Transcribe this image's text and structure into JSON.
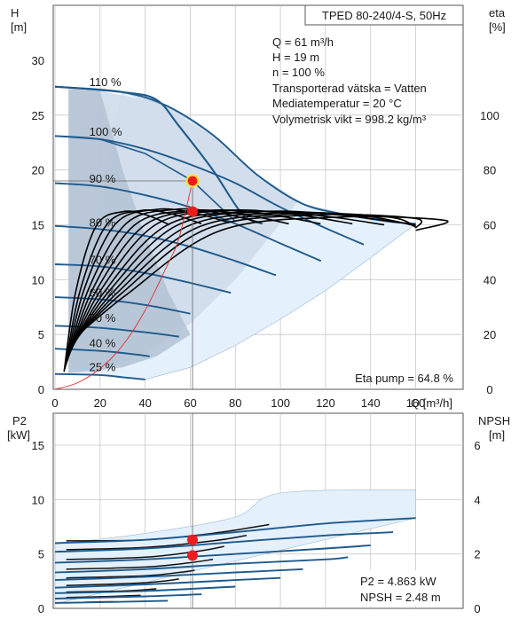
{
  "chart_data": [
    {
      "type": "line",
      "title": "TPED 80-240/4-S, 50Hz",
      "xlabel": "Q [m³/h]",
      "ylabel_left": [
        "H",
        "[m]"
      ],
      "ylabel_right": [
        "eta",
        "[%]"
      ],
      "xlim": [
        0,
        160
      ],
      "ylim": [
        0,
        30
      ],
      "y2lim": [
        0,
        120
      ],
      "xticks": [
        0,
        20,
        40,
        60,
        80,
        100,
        120,
        140,
        160
      ],
      "yticks": [
        0,
        5,
        10,
        15,
        20,
        25,
        30
      ],
      "y2ticks": [
        0,
        20,
        40,
        60,
        80,
        100
      ],
      "info": [
        "Q = 61 m³/h",
        "H = 19 m",
        "n = 100 %",
        "Transporterad vätska = Vatten",
        "Mediatemperatur = 20 °C",
        "Volymetrisk vikt = 998.2 kg/m³"
      ],
      "eta_pump_text": "Eta pump = 64.8 %",
      "speed_curves": [
        {
          "name": "110 %",
          "points": [
            [
              0,
              27.6
            ],
            [
              30,
              27.1
            ],
            [
              50,
              25.8
            ],
            [
              70,
              23.2
            ],
            [
              90,
              19.5
            ],
            [
              110,
              16.9
            ],
            [
              130,
              15.9
            ],
            [
              148,
              15.3
            ],
            [
              160,
              15.1
            ]
          ]
        },
        {
          "name": "100 %",
          "points": [
            [
              0,
              23.1
            ],
            [
              20,
              22.8
            ],
            [
              40,
              21.9
            ],
            [
              60,
              20.5
            ],
            [
              80,
              18.8
            ],
            [
              100,
              16.6
            ],
            [
              120,
              14.7
            ],
            [
              137,
              13.2
            ]
          ]
        },
        {
          "name": "90 %",
          "points": [
            [
              0,
              18.8
            ],
            [
              20,
              18.5
            ],
            [
              40,
              17.7
            ],
            [
              60,
              16.6
            ],
            [
              80,
              15.1
            ],
            [
              100,
              13.3
            ],
            [
              118,
              11.7
            ]
          ]
        },
        {
          "name": "80 %",
          "points": [
            [
              0,
              14.9
            ],
            [
              20,
              14.6
            ],
            [
              40,
              14.0
            ],
            [
              60,
              13.0
            ],
            [
              80,
              11.7
            ],
            [
              98,
              10.4
            ]
          ]
        },
        {
          "name": "70 %",
          "points": [
            [
              0,
              11.4
            ],
            [
              20,
              11.2
            ],
            [
              40,
              10.6
            ],
            [
              60,
              9.7
            ],
            [
              78,
              8.8
            ]
          ]
        },
        {
          "name": "60 %",
          "points": [
            [
              0,
              8.4
            ],
            [
              20,
              8.2
            ],
            [
              40,
              7.7
            ],
            [
              60,
              6.9
            ]
          ]
        },
        {
          "name": "50 %",
          "points": [
            [
              0,
              5.8
            ],
            [
              20,
              5.6
            ],
            [
              40,
              5.2
            ],
            [
              55,
              4.8
            ]
          ]
        },
        {
          "name": "40 %",
          "points": [
            [
              0,
              3.7
            ],
            [
              20,
              3.5
            ],
            [
              35,
              3.2
            ],
            [
              42,
              3.0
            ]
          ]
        },
        {
          "name": "25 %",
          "points": [
            [
              0,
              1.4
            ],
            [
              20,
              1.3
            ],
            [
              30,
              1.1
            ],
            [
              40,
              0.9
            ]
          ]
        }
      ],
      "speed_curve_labels": [
        "110 %",
        "100 %",
        "90 %",
        "80 %",
        "70 %",
        "60 %",
        "50 %",
        "40 %",
        "25 %"
      ],
      "efficiency_peak_curves": {
        "start_x": 4,
        "peaks": [
          [
            30,
            16.2
          ],
          [
            38,
            16.3
          ],
          [
            45,
            16.4
          ],
          [
            53,
            16.4
          ],
          [
            60,
            16.3
          ],
          [
            68,
            16.3
          ],
          [
            76,
            16.3
          ],
          [
            84,
            16.2
          ],
          [
            92,
            16.2
          ],
          [
            100,
            16.1
          ],
          [
            108,
            16.0
          ],
          [
            116,
            15.9
          ],
          [
            126,
            15.7
          ]
        ]
      },
      "system_curve": [
        [
          0,
          0
        ],
        [
          10,
          0.6
        ],
        [
          20,
          1.9
        ],
        [
          30,
          4.0
        ],
        [
          40,
          7.2
        ],
        [
          50,
          11.4
        ],
        [
          55,
          13.8
        ],
        [
          61,
          19.0
        ]
      ],
      "duty_points": [
        {
          "x": 61,
          "y": 19.0
        },
        {
          "x": 61,
          "y": 16.2
        }
      ],
      "colors": {
        "curve": "#1f5a8c",
        "eta": "#000000",
        "fill_light": "#e4f0fb",
        "fill_mid": "#cfdcea",
        "fill_dark": "#b4c3d3",
        "point": "#ee1c1c",
        "point_ring": "#f5e43a",
        "grid": "#c8c8c8"
      }
    },
    {
      "type": "line",
      "ylabel_left": [
        "P2",
        "[kW]"
      ],
      "ylabel_right": [
        "NPSH",
        "[m]"
      ],
      "xlim": [
        0,
        160
      ],
      "ylim": [
        0,
        15
      ],
      "y2lim": [
        0,
        6
      ],
      "yticks": [
        0,
        5,
        10,
        15
      ],
      "y2ticks": [
        0,
        2,
        4,
        6
      ],
      "info": [
        "P2 = 4.863 kW",
        "NPSH = 2.48 m"
      ],
      "p2_curves": [
        [
          [
            0,
            6.0
          ],
          [
            40,
            6.3
          ],
          [
            80,
            7.0
          ],
          [
            120,
            7.8
          ],
          [
            160,
            8.3
          ]
        ],
        [
          [
            0,
            5.2
          ],
          [
            40,
            5.5
          ],
          [
            80,
            6.1
          ],
          [
            120,
            6.7
          ],
          [
            150,
            7.0
          ]
        ],
        [
          [
            0,
            4.2
          ],
          [
            40,
            4.5
          ],
          [
            80,
            5.0
          ],
          [
            120,
            5.5
          ],
          [
            140,
            5.8
          ]
        ],
        [
          [
            0,
            3.3
          ],
          [
            40,
            3.6
          ],
          [
            80,
            4.1
          ],
          [
            120,
            4.5
          ],
          [
            130,
            4.7
          ]
        ],
        [
          [
            0,
            2.6
          ],
          [
            40,
            2.9
          ],
          [
            80,
            3.3
          ],
          [
            110,
            3.6
          ]
        ],
        [
          [
            0,
            1.9
          ],
          [
            40,
            2.2
          ],
          [
            80,
            2.6
          ],
          [
            100,
            2.8
          ]
        ],
        [
          [
            0,
            1.4
          ],
          [
            40,
            1.6
          ],
          [
            80,
            2.0
          ]
        ],
        [
          [
            0,
            0.9
          ],
          [
            40,
            1.1
          ],
          [
            65,
            1.3
          ]
        ],
        [
          [
            0,
            0.5
          ],
          [
            30,
            0.6
          ],
          [
            50,
            0.7
          ]
        ]
      ],
      "npsh_curves": [
        [
          [
            5,
            6.2
          ],
          [
            40,
            6.3
          ],
          [
            70,
            6.9
          ],
          [
            95,
            7.7
          ]
        ],
        [
          [
            5,
            5.4
          ],
          [
            40,
            5.6
          ],
          [
            70,
            6.2
          ],
          [
            85,
            6.7
          ]
        ],
        [
          [
            5,
            4.5
          ],
          [
            40,
            4.7
          ],
          [
            65,
            5.3
          ],
          [
            75,
            5.7
          ]
        ],
        [
          [
            5,
            3.6
          ],
          [
            40,
            3.8
          ],
          [
            60,
            4.2
          ],
          [
            70,
            4.5
          ]
        ],
        [
          [
            5,
            2.8
          ],
          [
            40,
            3.0
          ],
          [
            55,
            3.3
          ],
          [
            62,
            3.5
          ]
        ],
        [
          [
            5,
            2.1
          ],
          [
            35,
            2.3
          ],
          [
            48,
            2.5
          ],
          [
            55,
            2.7
          ]
        ],
        [
          [
            5,
            1.5
          ],
          [
            30,
            1.6
          ],
          [
            45,
            1.8
          ]
        ],
        [
          [
            5,
            1.0
          ],
          [
            25,
            1.1
          ],
          [
            38,
            1.2
          ]
        ],
        [
          [
            5,
            0.5
          ],
          [
            20,
            0.6
          ],
          [
            28,
            0.6
          ]
        ]
      ],
      "region_upper": [
        [
          0,
          5.9
        ],
        [
          40,
          6.9
        ],
        [
          80,
          8.4
        ],
        [
          100,
          10.6
        ],
        [
          160,
          10.9
        ]
      ],
      "duty_points": [
        {
          "x": 61,
          "y": 6.3
        },
        {
          "x": 61,
          "y": 4.86
        }
      ]
    }
  ]
}
